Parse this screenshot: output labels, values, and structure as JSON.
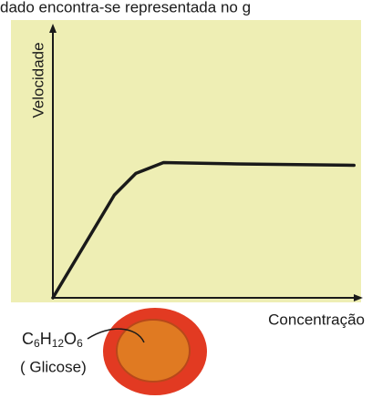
{
  "caption_fragment": "dado encontra-se representada no g",
  "chart_data": {
    "type": "line",
    "x_label": "Concentração",
    "y_label": "Velocidade",
    "x": [
      0,
      20,
      27,
      36,
      60,
      98
    ],
    "series": [
      {
        "values": [
          0,
          38,
          46,
          50,
          49.5,
          49
        ],
        "color": "#1a1a1a"
      }
    ],
    "xlim": [
      0,
      100
    ],
    "ylim": [
      0,
      100
    ],
    "xticks": [],
    "yticks": [],
    "grid": false
  },
  "molecule": {
    "formula": [
      "C",
      "6",
      "H",
      "12",
      "O",
      "6"
    ],
    "name": "( Glicose)"
  }
}
